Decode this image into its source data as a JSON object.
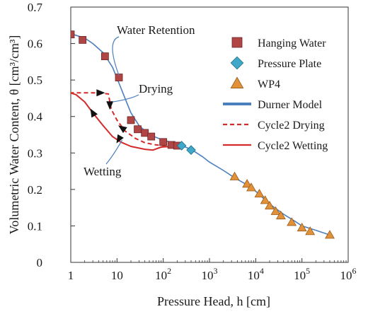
{
  "chart_data": {
    "type": "scatter",
    "xlabel": "Pressure Head, h [cm]",
    "ylabel": "Volumetric Water Content, θ [cm³/cm³]",
    "x_scale": "log",
    "xlim": [
      1,
      1000000
    ],
    "ylim": [
      0,
      0.7
    ],
    "x_ticks": [
      {
        "value": 1,
        "label_base": "1",
        "label_exp": ""
      },
      {
        "value": 10,
        "label_base": "10",
        "label_exp": ""
      },
      {
        "value": 100,
        "label_base": "10",
        "label_exp": "2"
      },
      {
        "value": 1000,
        "label_base": "10",
        "label_exp": "3"
      },
      {
        "value": 10000,
        "label_base": "10",
        "label_exp": "4"
      },
      {
        "value": 100000,
        "label_base": "10",
        "label_exp": "5"
      },
      {
        "value": 1000000,
        "label_base": "10",
        "label_exp": "6"
      }
    ],
    "y_ticks": [
      "0",
      "0.1",
      "0.2",
      "0.3",
      "0.4",
      "0.5",
      "0.6",
      "0.7"
    ],
    "grid": false,
    "legend_position": "top-right",
    "series": [
      {
        "name": "Hanging Water",
        "kind": "marker",
        "marker": "square",
        "color": "#b04545",
        "points": [
          [
            1.0,
            0.625
          ],
          [
            1.8,
            0.61
          ],
          [
            5.5,
            0.565
          ],
          [
            11,
            0.507
          ],
          [
            20,
            0.39
          ],
          [
            28,
            0.365
          ],
          [
            40,
            0.355
          ],
          [
            55,
            0.345
          ],
          [
            100,
            0.33
          ],
          [
            150,
            0.322
          ],
          [
            200,
            0.32
          ]
        ]
      },
      {
        "name": "Pressure Plate",
        "kind": "marker",
        "marker": "diamond",
        "color": "#3fa7c8",
        "points": [
          [
            250,
            0.32
          ],
          [
            400,
            0.308
          ]
        ]
      },
      {
        "name": "WP4",
        "kind": "marker",
        "marker": "triangle",
        "color": "#e0913a",
        "points": [
          [
            3500,
            0.235
          ],
          [
            6500,
            0.215
          ],
          [
            8000,
            0.205
          ],
          [
            12000,
            0.188
          ],
          [
            16000,
            0.17
          ],
          [
            20000,
            0.155
          ],
          [
            27000,
            0.14
          ],
          [
            35000,
            0.128
          ],
          [
            60000,
            0.11
          ],
          [
            100000,
            0.095
          ],
          [
            150000,
            0.085
          ],
          [
            400000,
            0.075
          ]
        ]
      },
      {
        "name": "Durner Model",
        "kind": "line",
        "color": "#4c7fbf",
        "dash": "",
        "points": [
          [
            1,
            0.627
          ],
          [
            2,
            0.615
          ],
          [
            3,
            0.6
          ],
          [
            5,
            0.575
          ],
          [
            8,
            0.535
          ],
          [
            12,
            0.48
          ],
          [
            16,
            0.44
          ],
          [
            20,
            0.41
          ],
          [
            30,
            0.375
          ],
          [
            50,
            0.35
          ],
          [
            100,
            0.335
          ],
          [
            200,
            0.325
          ],
          [
            400,
            0.31
          ],
          [
            700,
            0.29
          ],
          [
            1000,
            0.275
          ],
          [
            2000,
            0.252
          ],
          [
            3500,
            0.232
          ],
          [
            6000,
            0.215
          ],
          [
            10000,
            0.195
          ],
          [
            20000,
            0.16
          ],
          [
            40000,
            0.132
          ],
          [
            70000,
            0.113
          ],
          [
            100000,
            0.1
          ],
          [
            200000,
            0.088
          ],
          [
            400000,
            0.075
          ]
        ]
      },
      {
        "name": "Cycle2 Drying",
        "kind": "line",
        "color": "#d42a2a",
        "dash": "6,4",
        "points": [
          [
            0.95,
            0.465
          ],
          [
            3,
            0.465
          ],
          [
            6.5,
            0.462
          ],
          [
            7.5,
            0.42
          ],
          [
            10,
            0.39
          ],
          [
            15,
            0.36
          ],
          [
            25,
            0.34
          ],
          [
            40,
            0.328
          ],
          [
            70,
            0.322
          ],
          [
            150,
            0.318
          ],
          [
            250,
            0.318
          ]
        ]
      },
      {
        "name": "Cycle2 Wetting",
        "kind": "line",
        "color": "#d42a2a",
        "dash": "",
        "points": [
          [
            250,
            0.318
          ],
          [
            150,
            0.318
          ],
          [
            90,
            0.316
          ],
          [
            60,
            0.308
          ],
          [
            40,
            0.31
          ],
          [
            20,
            0.318
          ],
          [
            12,
            0.33
          ],
          [
            8,
            0.345
          ],
          [
            5,
            0.375
          ],
          [
            3,
            0.41
          ],
          [
            2,
            0.44
          ],
          [
            1.3,
            0.46
          ],
          [
            0.95,
            0.465
          ]
        ]
      }
    ],
    "annotations": [
      {
        "id": "water-retention",
        "text": "Water Retention"
      },
      {
        "id": "drying",
        "text": "Drying"
      },
      {
        "id": "wetting",
        "text": "Wetting"
      }
    ]
  }
}
